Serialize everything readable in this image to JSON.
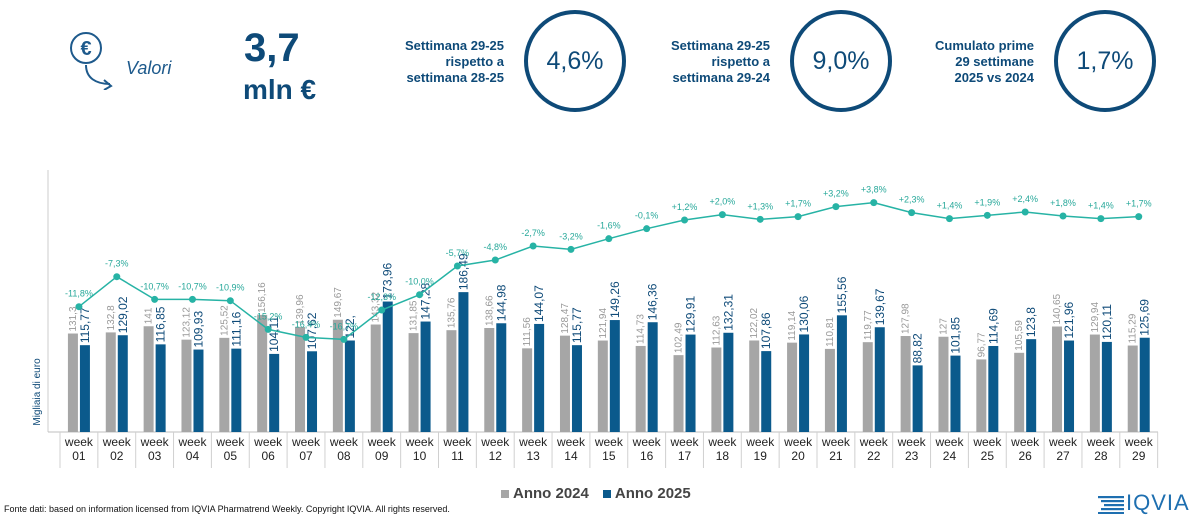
{
  "kpi": {
    "icon": "euro-down-arrow-icon",
    "valori_label": "Valori",
    "value": "3,7",
    "unit": "mln €",
    "cards": [
      {
        "label": [
          "Settimana 29-25",
          "rispetto a",
          "settimana 28-25"
        ],
        "value": "4,6%"
      },
      {
        "label": [
          "Settimana 29-25",
          "rispetto a",
          "settimana 29-24"
        ],
        "value": "9,0%"
      },
      {
        "label": [
          "Cumulato prime",
          "29 settimane",
          "2025 vs 2024"
        ],
        "value": "1,7%"
      }
    ]
  },
  "colors": {
    "dark_blue": "#0e4a78",
    "bar_2024": "#a6a6a6",
    "bar_2025": "#0b5a8c",
    "line": "#27b3a5"
  },
  "chart_data": {
    "type": "bar",
    "ylabel": "Migliaia di euro",
    "categories": [
      "week\n01",
      "week\n02",
      "week\n03",
      "week\n04",
      "week\n05",
      "week\n06",
      "week\n07",
      "week\n08",
      "week\n09",
      "week\n10",
      "week\n11",
      "week\n12",
      "week\n13",
      "week\n14",
      "week\n15",
      "week\n16",
      "week\n17",
      "week\n18",
      "week\n19",
      "week\n20",
      "week\n21",
      "week\n22",
      "week\n23",
      "week\n24",
      "week\n25",
      "week\n26",
      "week\n27",
      "week\n28",
      "week\n29"
    ],
    "series": [
      {
        "name": "Anno 2024",
        "values": [
          131.3,
          132.8,
          141,
          123.12,
          125.52,
          156.16,
          139.96,
          149.67,
          143.32,
          131.85,
          135.76,
          138.66,
          111.56,
          128.47,
          121.94,
          114.73,
          102.49,
          112.63,
          122.02,
          119.14,
          110.81,
          119.77,
          127.98,
          127,
          96.77,
          105.59,
          140.65,
          129.94,
          115.29
        ],
        "labels": [
          "131,3",
          "132,8",
          "141",
          "123,12",
          "125,52",
          "156,16",
          "139,96",
          "149,67",
          "143,32",
          "131,85",
          "135,76",
          "138,66",
          "111,56",
          "128,47",
          "121,94",
          "114,73",
          "102,49",
          "112,63",
          "122,02",
          "119,14",
          "110,81",
          "119,77",
          "127,98",
          "127",
          "96,77",
          "105,59",
          "140,65",
          "129,94",
          "115,29"
        ]
      },
      {
        "name": "Anno 2025",
        "values": [
          115.77,
          129.02,
          116.85,
          109.93,
          111.16,
          104.11,
          107.62,
          122,
          173.96,
          147.28,
          186.49,
          144.98,
          144.07,
          115.77,
          149.26,
          146.36,
          129.91,
          132.31,
          107.86,
          130.06,
          155.56,
          139.67,
          88.82,
          101.85,
          114.69,
          123.8,
          121.96,
          120.11,
          125.69
        ],
        "labels": [
          "115,77",
          "129,02",
          "116,85",
          "109,93",
          "111,16",
          "104,11",
          "107,62",
          "122,",
          "173,96",
          "147,28",
          "186,49",
          "144,98",
          "144,07",
          "115,77",
          "149,26",
          "146,36",
          "129,91",
          "132,31",
          "107,86",
          "130,06",
          "155,56",
          "139,67",
          "88,82",
          "101,85",
          "114,69",
          "123,8",
          "121,96",
          "120,11",
          "125,69"
        ]
      }
    ],
    "pct_change": {
      "values": [
        -11.8,
        -7.3,
        -10.7,
        -10.7,
        -10.9,
        -15.2,
        -16.4,
        -16.7,
        -12.3,
        -10.0,
        -5.7,
        -4.8,
        -2.7,
        -3.2,
        -1.6,
        -0.1,
        1.2,
        2.0,
        1.3,
        1.7,
        3.2,
        3.8,
        2.3,
        1.4,
        1.9,
        2.4,
        1.8,
        1.4,
        1.7
      ],
      "labels": [
        "-11,8%",
        "-7,3%",
        "-10,7%",
        "-10,7%",
        "-10,9%",
        "-15,2%",
        "-16,4%",
        "-16,7%",
        "-12,3%",
        "-10,0%",
        "-5,7%",
        "-4,8%",
        "-2,7%",
        "-3,2%",
        "-1,6%",
        "-0,1%",
        "+1,2%",
        "+2,0%",
        "+1,3%",
        "+1,7%",
        "+3,2%",
        "+3,8%",
        "+2,3%",
        "+1,4%",
        "+1,9%",
        "+2,4%",
        "+1,8%",
        "+1,4%",
        "+1,7%"
      ]
    },
    "legend": "bottom-center",
    "grid": false
  },
  "legend": {
    "a2024": "Anno 2024",
    "a2025": "Anno 2025"
  },
  "footer": "Fonte dati: based on information licensed from IQVIA Pharmatrend Weekly. Copyright IQVIA. All rights reserved.",
  "logo": "IQVIA"
}
